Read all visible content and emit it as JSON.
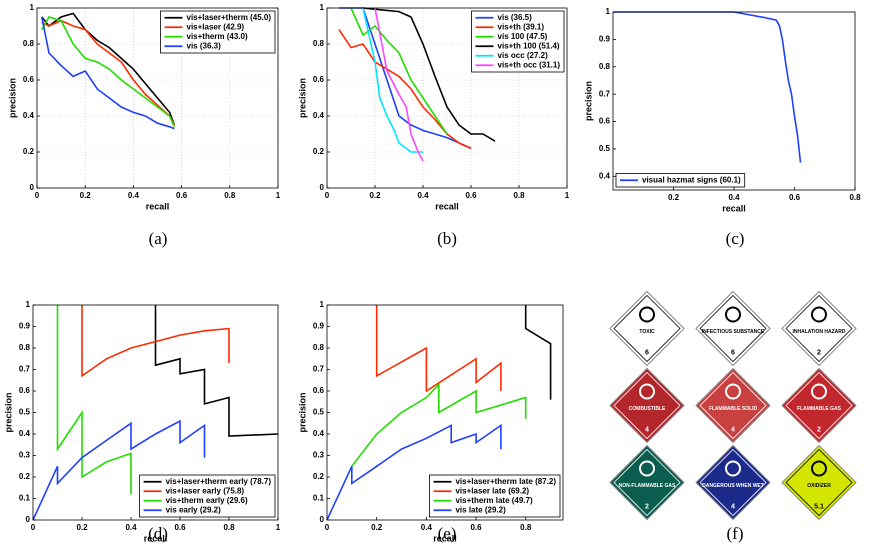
{
  "chart_data": [
    {
      "type": "line",
      "x_label": "recall",
      "y_label": "precision",
      "xlim": [
        0,
        1
      ],
      "ylim": [
        0,
        1
      ],
      "xticks": [
        0,
        0.2,
        0.4,
        0.6,
        0.8,
        1
      ],
      "yticks": [
        0,
        0.2,
        0.4,
        0.6,
        0.8,
        1
      ],
      "grid": true,
      "legend": "upper right",
      "series": [
        {
          "name": "vis+laser+therm (45.0)",
          "color": "#000000",
          "x": [
            0.02,
            0.05,
            0.1,
            0.15,
            0.2,
            0.25,
            0.3,
            0.35,
            0.4,
            0.45,
            0.5,
            0.55,
            0.57
          ],
          "values": [
            0.95,
            0.9,
            0.95,
            0.97,
            0.88,
            0.82,
            0.78,
            0.72,
            0.66,
            0.58,
            0.5,
            0.42,
            0.35
          ]
        },
        {
          "name": "vis+laser (42.9)",
          "color": "#ff2a00",
          "x": [
            0.02,
            0.05,
            0.1,
            0.15,
            0.2,
            0.25,
            0.3,
            0.35,
            0.4,
            0.45,
            0.5,
            0.55,
            0.57
          ],
          "values": [
            0.92,
            0.9,
            0.93,
            0.9,
            0.88,
            0.8,
            0.75,
            0.7,
            0.6,
            0.52,
            0.46,
            0.4,
            0.35
          ]
        },
        {
          "name": "vis+therm (43.0)",
          "color": "#22dd00",
          "x": [
            0.02,
            0.05,
            0.1,
            0.15,
            0.2,
            0.25,
            0.3,
            0.35,
            0.4,
            0.45,
            0.5,
            0.55,
            0.57
          ],
          "values": [
            0.88,
            0.95,
            0.93,
            0.8,
            0.72,
            0.7,
            0.66,
            0.6,
            0.55,
            0.5,
            0.45,
            0.4,
            0.34
          ]
        },
        {
          "name": "vis (36.3)",
          "color": "#1f3fff",
          "x": [
            0.02,
            0.05,
            0.1,
            0.15,
            0.2,
            0.25,
            0.3,
            0.35,
            0.4,
            0.45,
            0.5,
            0.55,
            0.57
          ],
          "values": [
            0.95,
            0.75,
            0.68,
            0.62,
            0.65,
            0.55,
            0.5,
            0.45,
            0.42,
            0.4,
            0.36,
            0.34,
            0.33
          ]
        }
      ]
    },
    {
      "type": "line",
      "x_label": "recall",
      "y_label": "precision",
      "xlim": [
        0,
        1
      ],
      "ylim": [
        0,
        1
      ],
      "xticks": [
        0,
        0.2,
        0.4,
        0.6,
        0.8,
        1
      ],
      "yticks": [
        0,
        0.2,
        0.4,
        0.6,
        0.8,
        1
      ],
      "grid": true,
      "legend": "upper right",
      "series": [
        {
          "name": "vis (36.5)",
          "color": "#1f3fff",
          "x": [
            0.05,
            0.15,
            0.2,
            0.25,
            0.3,
            0.35,
            0.4,
            0.45,
            0.5,
            0.55,
            0.6
          ],
          "values": [
            1,
            1,
            0.8,
            0.6,
            0.4,
            0.35,
            0.32,
            0.3,
            0.28,
            0.25,
            0.22
          ]
        },
        {
          "name": "vis+th (39.1)",
          "color": "#ff2a00",
          "x": [
            0.05,
            0.1,
            0.15,
            0.2,
            0.3,
            0.35,
            0.4,
            0.45,
            0.5,
            0.55,
            0.6
          ],
          "values": [
            0.88,
            0.78,
            0.8,
            0.7,
            0.62,
            0.55,
            0.45,
            0.38,
            0.3,
            0.25,
            0.22
          ]
        },
        {
          "name": "vis 100 (47.5)",
          "color": "#22dd00",
          "x": [
            0.1,
            0.15,
            0.2,
            0.25,
            0.3,
            0.35,
            0.4,
            0.45,
            0.5
          ],
          "values": [
            1,
            0.85,
            0.9,
            0.82,
            0.75,
            0.6,
            0.5,
            0.4,
            0.3
          ]
        },
        {
          "name": "vis+th 100 (51.4)",
          "color": "#000000",
          "x": [
            0.15,
            0.3,
            0.35,
            0.4,
            0.45,
            0.5,
            0.55,
            0.6,
            0.65,
            0.7
          ],
          "values": [
            1,
            0.98,
            0.95,
            0.8,
            0.62,
            0.45,
            0.35,
            0.3,
            0.3,
            0.26
          ]
        },
        {
          "name": "vis occ (27.2)",
          "color": "#00e5ff",
          "x": [
            0.15,
            0.2,
            0.22,
            0.25,
            0.28,
            0.3,
            0.35,
            0.4
          ],
          "values": [
            1,
            0.7,
            0.5,
            0.4,
            0.32,
            0.25,
            0.2,
            0.2
          ]
        },
        {
          "name": "vis+th occ (31.1)",
          "color": "#ff44ff",
          "x": [
            0.2,
            0.25,
            0.3,
            0.33,
            0.35,
            0.38,
            0.4
          ],
          "values": [
            1,
            0.65,
            0.52,
            0.45,
            0.3,
            0.2,
            0.15
          ]
        }
      ]
    },
    {
      "type": "line",
      "x_label": "recall",
      "y_label": "precision",
      "xlim": [
        0,
        0.8
      ],
      "ylim": [
        0.35,
        1
      ],
      "xticks": [
        0.2,
        0.4,
        0.6,
        0.8
      ],
      "yticks": [
        0.4,
        0.5,
        0.6,
        0.7,
        0.8,
        0.9,
        1
      ],
      "grid": false,
      "legend": "lower left",
      "series": [
        {
          "name": "visual hazmat signs (60.1)",
          "color": "#1f3fff",
          "x": [
            0,
            0.2,
            0.4,
            0.5,
            0.54,
            0.55,
            0.56,
            0.57,
            0.58,
            0.59,
            0.6,
            0.61,
            0.62
          ],
          "values": [
            1,
            1,
            1,
            0.98,
            0.97,
            0.95,
            0.9,
            0.82,
            0.75,
            0.7,
            0.62,
            0.55,
            0.45
          ]
        }
      ]
    },
    {
      "type": "line",
      "x_label": "recall",
      "y_label": "precision",
      "xlim": [
        0,
        1
      ],
      "ylim": [
        0,
        1
      ],
      "xticks": [
        0,
        0.2,
        0.4,
        0.6,
        0.8,
        1
      ],
      "yticks": [
        0,
        0.1,
        0.2,
        0.3,
        0.4,
        0.5,
        0.6,
        0.7,
        0.8,
        0.9,
        1
      ],
      "grid": false,
      "legend": "lower right",
      "series": [
        {
          "name": "vis+laser+therm early (78.7)",
          "color": "#000000",
          "x": [
            0.5,
            0.5,
            0.6,
            0.6,
            0.7,
            0.7,
            0.8,
            0.8,
            1
          ],
          "values": [
            1,
            0.72,
            0.75,
            0.68,
            0.7,
            0.54,
            0.57,
            0.39,
            0.4
          ]
        },
        {
          "name": "vis+laser early (75.8)",
          "color": "#ff2a00",
          "x": [
            0.2,
            0.2,
            0.3,
            0.4,
            0.5,
            0.6,
            0.7,
            0.8,
            0.8
          ],
          "values": [
            1,
            0.67,
            0.75,
            0.8,
            0.83,
            0.86,
            0.88,
            0.89,
            0.73
          ]
        },
        {
          "name": "vis+therm early (29.6)",
          "color": "#22dd00",
          "x": [
            0.1,
            0.1,
            0.2,
            0.2,
            0.3,
            0.4,
            0.4
          ],
          "values": [
            1,
            0.33,
            0.5,
            0.2,
            0.27,
            0.31,
            0.12
          ]
        },
        {
          "name": "vis early (29.2)",
          "color": "#1f3fff",
          "x": [
            0,
            0.1,
            0.1,
            0.2,
            0.3,
            0.4,
            0.4,
            0.5,
            0.6,
            0.6,
            0.7,
            0.7
          ],
          "values": [
            0,
            0.25,
            0.17,
            0.29,
            0.37,
            0.45,
            0.33,
            0.4,
            0.46,
            0.36,
            0.44,
            0.29
          ]
        }
      ]
    },
    {
      "type": "line",
      "x_label": "recall",
      "y_label": "precision",
      "xlim": [
        0,
        0.95
      ],
      "ylim": [
        0,
        1
      ],
      "xticks": [
        0,
        0.2,
        0.4,
        0.6,
        0.8
      ],
      "yticks": [
        0,
        0.1,
        0.2,
        0.3,
        0.4,
        0.5,
        0.6,
        0.7,
        0.8,
        0.9,
        1
      ],
      "grid": false,
      "legend": "lower right",
      "series": [
        {
          "name": "vis+laser+therm late (87.2)",
          "color": "#000000",
          "x": [
            0.8,
            0.8,
            0.9,
            0.9
          ],
          "values": [
            1,
            0.89,
            0.82,
            0.56
          ]
        },
        {
          "name": "vis+laser late (69.2)",
          "color": "#ff2a00",
          "x": [
            0.2,
            0.2,
            0.4,
            0.4,
            0.6,
            0.6,
            0.7,
            0.7
          ],
          "values": [
            1,
            0.67,
            0.8,
            0.6,
            0.75,
            0.64,
            0.73,
            0.6
          ]
        },
        {
          "name": "vis+therm late (49.7)",
          "color": "#22dd00",
          "x": [
            0.1,
            0.2,
            0.3,
            0.4,
            0.45,
            0.45,
            0.6,
            0.6,
            0.8,
            0.8
          ],
          "values": [
            0.25,
            0.4,
            0.5,
            0.57,
            0.63,
            0.5,
            0.6,
            0.5,
            0.57,
            0.47
          ]
        },
        {
          "name": "vis late (29.2)",
          "color": "#1f3fff",
          "x": [
            0,
            0.1,
            0.1,
            0.2,
            0.3,
            0.4,
            0.5,
            0.5,
            0.6,
            0.6,
            0.7,
            0.7
          ],
          "values": [
            0,
            0.25,
            0.17,
            0.25,
            0.33,
            0.38,
            0.44,
            0.36,
            0.4,
            0.36,
            0.44,
            0.33
          ]
        }
      ]
    }
  ],
  "captions": [
    "(a)",
    "(b)",
    "(c)",
    "(d)",
    "(e)",
    "(f)"
  ],
  "signs": [
    {
      "label": "TOXIC",
      "number": "6",
      "color": "#ffffff",
      "text_color": "#000000"
    },
    {
      "label": "INFECTIOUS SUBSTANCE",
      "number": "6",
      "color": "#ffffff",
      "text_color": "#000000"
    },
    {
      "label": "INHALATION HAZARD",
      "number": "2",
      "color": "#ffffff",
      "text_color": "#000000"
    },
    {
      "label": "COMBUSTIBLE",
      "number": "4",
      "color": "#b3262b",
      "text_color": "#ffffff"
    },
    {
      "label": "FLAMMABLE SOLID",
      "number": "4",
      "color": "#c84040",
      "text_color": "#ffffff"
    },
    {
      "label": "FLAMMABLE GAS",
      "number": "2",
      "color": "#c1272d",
      "text_color": "#ffffff"
    },
    {
      "label": "NON-FLAMMABLE GAS",
      "number": "2",
      "color": "#0b5d4f",
      "text_color": "#ffffff"
    },
    {
      "label": "DANGEROUS WHEN WET",
      "number": "4",
      "color": "#1c2a8a",
      "text_color": "#ffffff"
    },
    {
      "label": "OXIDIZER",
      "number": "5.1",
      "color": "#d4e600",
      "text_color": "#000000"
    }
  ]
}
